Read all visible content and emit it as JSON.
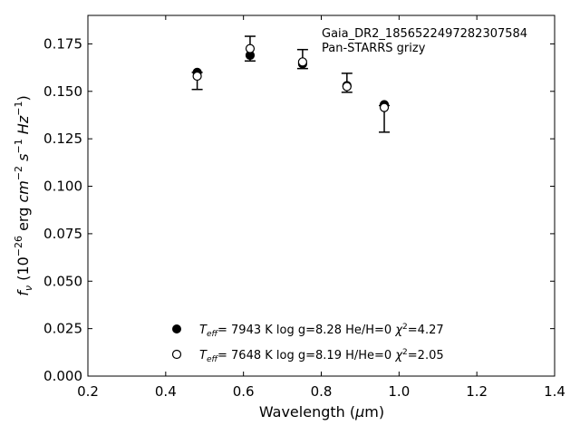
{
  "chart_data": {
    "type": "scatter",
    "xlabel": "Wavelength (μm)",
    "ylabel": "f_ν (10^-26 erg cm^-2 s^-1 Hz^-1)",
    "xlim": [
      0.2,
      1.4
    ],
    "ylim": [
      0.0,
      0.19
    ],
    "x_ticks": [
      "0.2",
      "0.4",
      "0.6",
      "0.8",
      "1.0",
      "1.2",
      "1.4"
    ],
    "y_ticks": [
      "0.000",
      "0.025",
      "0.050",
      "0.075",
      "0.100",
      "0.125",
      "0.150",
      "0.175"
    ],
    "grid": false,
    "annotation": {
      "line1": "Gaia_DR2_1856522497282307584",
      "line2": "Pan-STARRS grizy"
    },
    "observed": {
      "x": [
        0.481,
        0.617,
        0.752,
        0.866,
        0.962
      ],
      "y": [
        0.1555,
        0.1725,
        0.167,
        0.1545,
        0.1355
      ],
      "yerr": [
        0.0045,
        0.0065,
        0.005,
        0.005,
        0.007
      ]
    },
    "series": [
      {
        "name": "Teff= 7943 K  log g=8.28  He/H=0  χ²=4.27",
        "marker": "filled",
        "x": [
          0.481,
          0.617,
          0.752,
          0.866,
          0.962
        ],
        "y": [
          0.16,
          0.169,
          0.1645,
          0.153,
          0.143
        ]
      },
      {
        "name": "Teff= 7648 K  log g=8.19  H/He=0  χ²=2.05",
        "marker": "open",
        "x": [
          0.481,
          0.617,
          0.752,
          0.866,
          0.962
        ],
        "y": [
          0.158,
          0.1725,
          0.1655,
          0.1525,
          0.1415
        ]
      }
    ],
    "legend": [
      {
        "teff": "7943 K",
        "logg": "log g=8.28",
        "comp": "He/H=0",
        "chi2": "=4.27",
        "marker": "filled"
      },
      {
        "teff": "7648 K",
        "logg": "log g=8.19",
        "comp": "H/He=0",
        "chi2": "=2.05",
        "marker": "open"
      }
    ],
    "legend_position": "bottom-center"
  }
}
